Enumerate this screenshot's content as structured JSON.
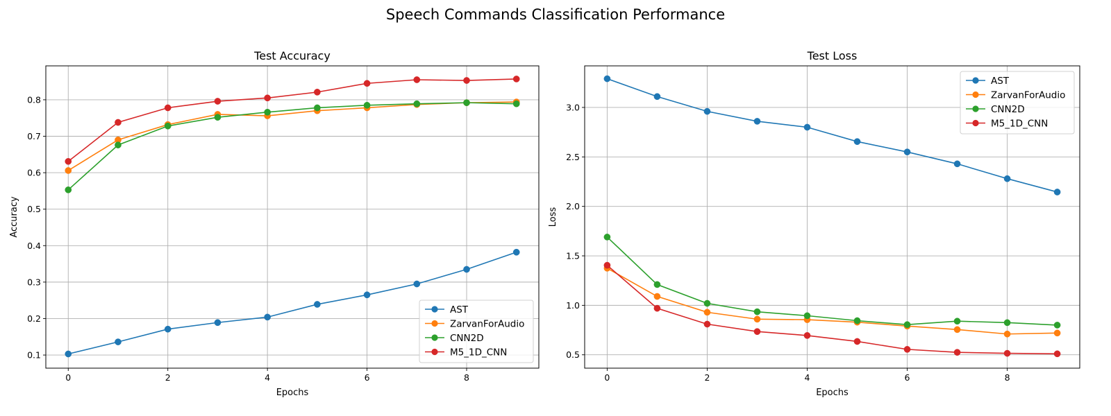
{
  "figure_title": "Speech Commands Classification Performance",
  "colors": {
    "AST": "#1f77b4",
    "ZarvanForAudio": "#ff7f0e",
    "CNN2D": "#2ca02c",
    "M5_1D_CNN": "#d62728"
  },
  "chart_data": [
    {
      "type": "line",
      "title": "Test Accuracy",
      "xlabel": "Epochs",
      "ylabel": "Accuracy",
      "x": [
        0,
        1,
        2,
        3,
        4,
        5,
        6,
        7,
        8,
        9
      ],
      "xlim": [
        -0.45,
        9.45
      ],
      "ylim": [
        0.064,
        0.893
      ],
      "xticks": [
        0,
        2,
        4,
        6,
        8
      ],
      "yticks": [
        0.1,
        0.2,
        0.3,
        0.4,
        0.5,
        0.6,
        0.7,
        0.8
      ],
      "ytick_labels": [
        "0.1",
        "0.2",
        "0.3",
        "0.4",
        "0.5",
        "0.6",
        "0.7",
        "0.8"
      ],
      "grid": true,
      "legend_position": "lower-right",
      "series": [
        {
          "name": "AST",
          "values": [
            0.103,
            0.136,
            0.171,
            0.189,
            0.204,
            0.239,
            0.265,
            0.295,
            0.335,
            0.382
          ]
        },
        {
          "name": "ZarvanForAudio",
          "values": [
            0.606,
            0.69,
            0.732,
            0.76,
            0.756,
            0.77,
            0.778,
            0.787,
            0.792,
            0.794
          ]
        },
        {
          "name": "CNN2D",
          "values": [
            0.553,
            0.676,
            0.728,
            0.752,
            0.766,
            0.778,
            0.785,
            0.789,
            0.792,
            0.789
          ]
        },
        {
          "name": "M5_1D_CNN",
          "values": [
            0.631,
            0.738,
            0.778,
            0.796,
            0.805,
            0.821,
            0.845,
            0.855,
            0.853,
            0.857
          ]
        }
      ]
    },
    {
      "type": "line",
      "title": "Test Loss",
      "xlabel": "Epochs",
      "ylabel": "Loss",
      "x": [
        0,
        1,
        2,
        3,
        4,
        5,
        6,
        7,
        8,
        9
      ],
      "xlim": [
        -0.45,
        9.45
      ],
      "ylim": [
        0.365,
        3.42
      ],
      "xticks": [
        0,
        2,
        4,
        6,
        8
      ],
      "yticks": [
        0.5,
        1.0,
        1.5,
        2.0,
        2.5,
        3.0
      ],
      "ytick_labels": [
        "0.5",
        "1.0",
        "1.5",
        "2.0",
        "2.5",
        "3.0"
      ],
      "grid": true,
      "legend_position": "upper-right",
      "series": [
        {
          "name": "AST",
          "values": [
            3.29,
            3.11,
            2.96,
            2.86,
            2.8,
            2.655,
            2.55,
            2.43,
            2.28,
            2.145
          ]
        },
        {
          "name": "ZarvanForAudio",
          "values": [
            1.375,
            1.09,
            0.93,
            0.86,
            0.855,
            0.83,
            0.79,
            0.755,
            0.71,
            0.72
          ]
        },
        {
          "name": "CNN2D",
          "values": [
            1.69,
            1.21,
            1.02,
            0.935,
            0.895,
            0.845,
            0.805,
            0.84,
            0.825,
            0.8
          ]
        },
        {
          "name": "M5_1D_CNN",
          "values": [
            1.405,
            0.97,
            0.81,
            0.735,
            0.695,
            0.635,
            0.555,
            0.525,
            0.515,
            0.51
          ]
        }
      ]
    }
  ]
}
